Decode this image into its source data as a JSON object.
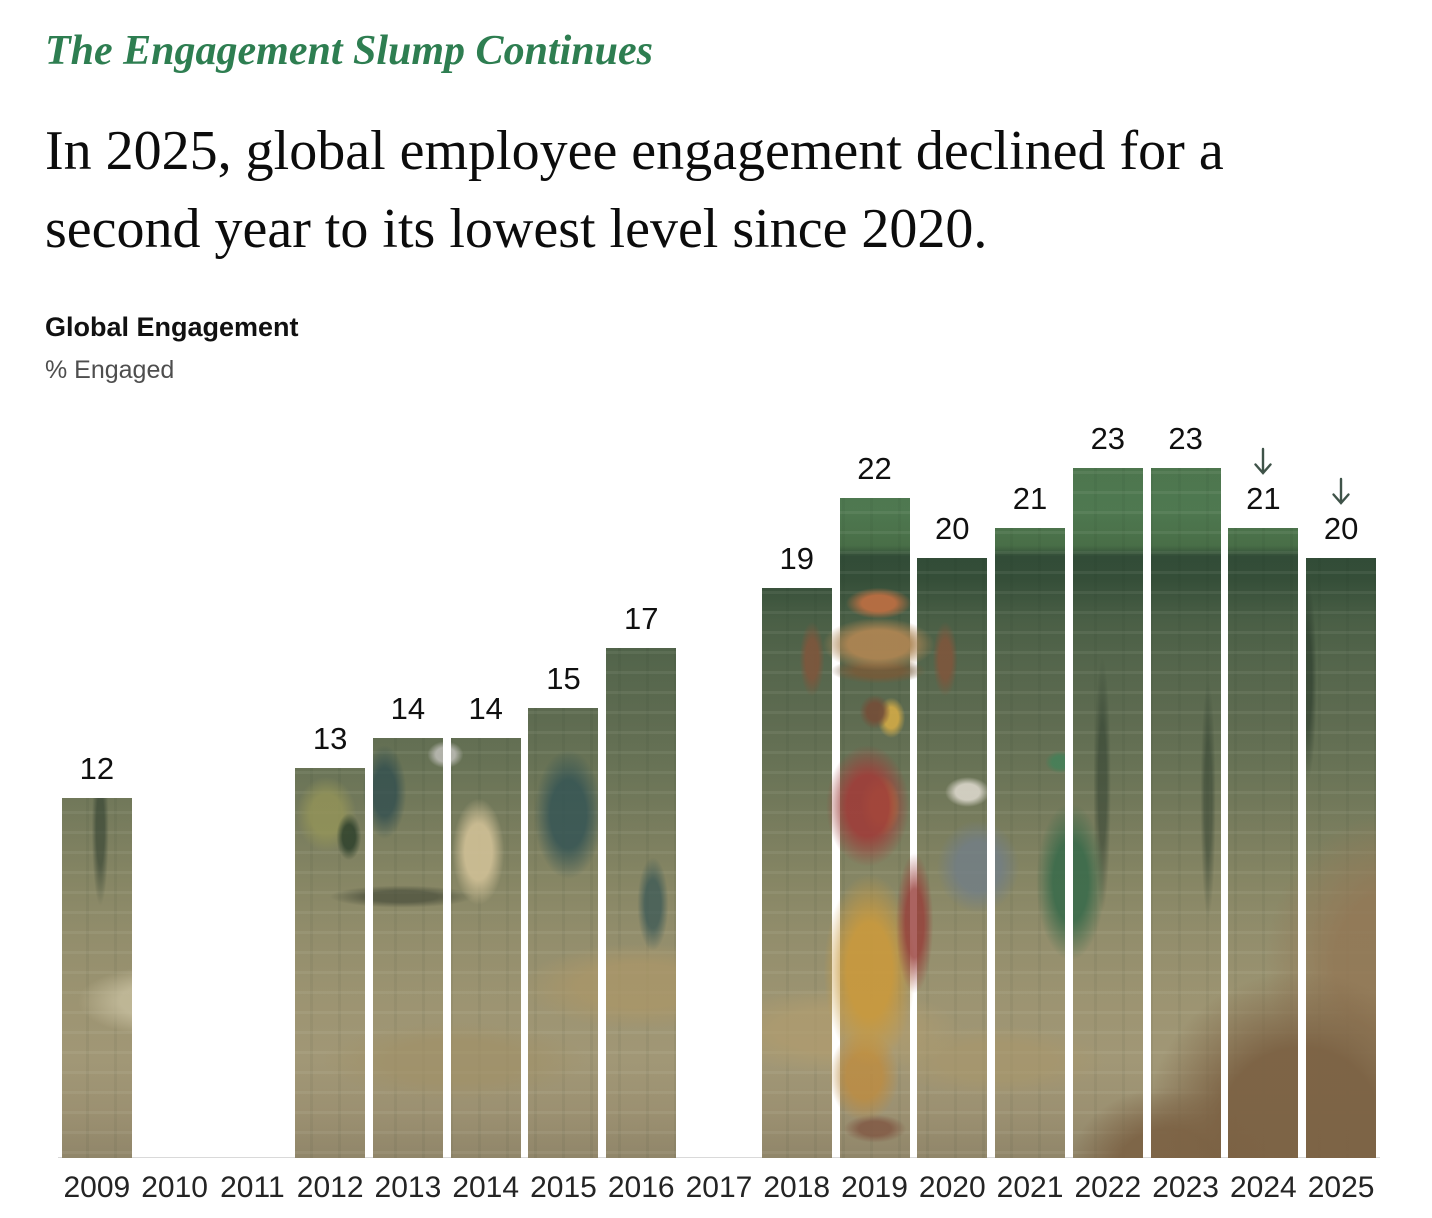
{
  "page": {
    "kicker": "The Engagement Slump Continues",
    "headline": "In 2025, global employee engagement declined for a second year to its lowest level since 2020.",
    "chart_title": "Global Engagement",
    "unit_label": "% Engaged"
  },
  "colors": {
    "kicker_green": "#2e7e51",
    "headline_text": "#0c0c0c",
    "value_label": "#101010",
    "axis_label": "#242424",
    "unit_label_gray": "#4e4e4e",
    "arrow": "#3f5349",
    "baseline": "#d9d9d9"
  },
  "background_photo": {
    "description": "Brick-kiln workers: woman in red-and-yellow sari carrying a basket of bricks on her head, workers stacking bricks, green-tinted brick wall; photo is visible only through the bar shapes"
  },
  "chart_data": {
    "type": "bar",
    "title": "Global Engagement",
    "ylabel": "% Engaged",
    "categories": [
      "2009",
      "2010",
      "2011",
      "2012",
      "2013",
      "2014",
      "2015",
      "2016",
      "2017",
      "2018",
      "2019",
      "2020",
      "2021",
      "2022",
      "2023",
      "2024",
      "2025"
    ],
    "values": [
      12,
      null,
      null,
      13,
      14,
      14,
      15,
      17,
      null,
      19,
      22,
      20,
      21,
      23,
      23,
      21,
      20
    ],
    "arrow_years": [
      "2024",
      "2025"
    ],
    "value_labels_position": "above-bars",
    "ylim": [
      0,
      25
    ],
    "grid": false,
    "legend": false
  }
}
